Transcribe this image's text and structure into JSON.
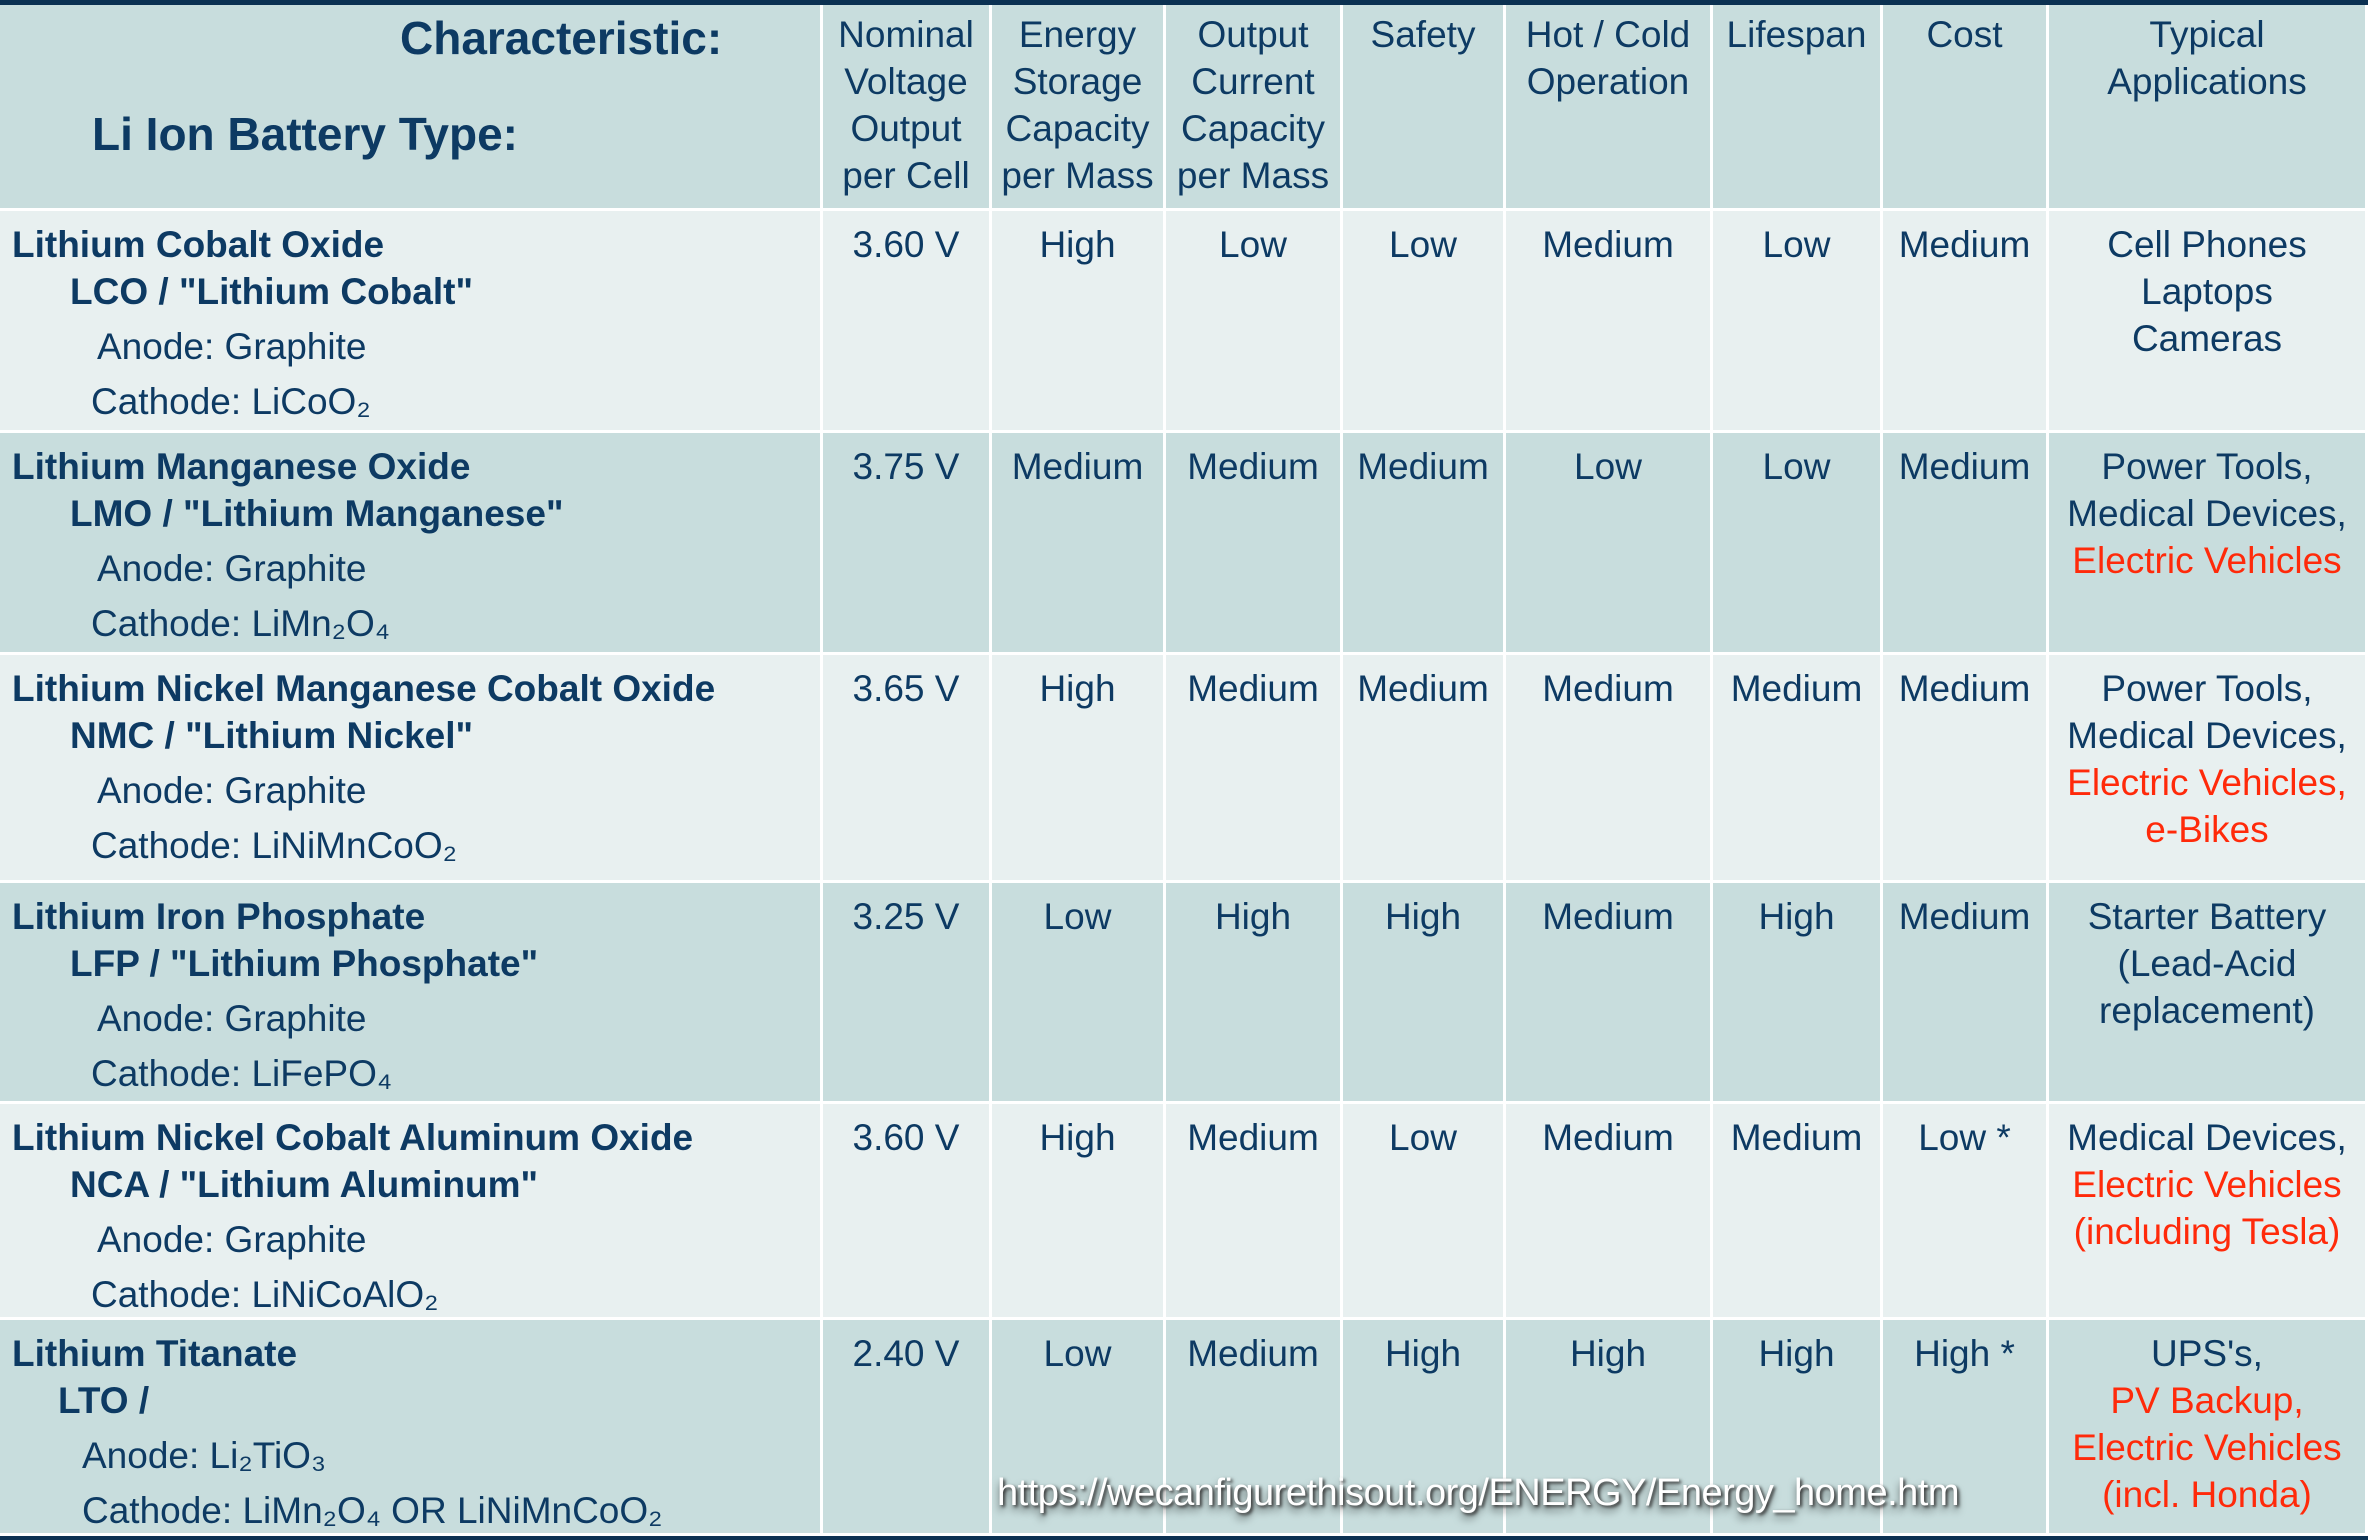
{
  "header": {
    "characteristic_label": "Characteristic:",
    "type_label": "Li Ion Battery Type:",
    "columns": [
      "Nominal Voltage Output per Cell",
      "Energy Storage Capacity per Mass",
      "Output Current Capacity per Mass",
      "Safety",
      "Hot / Cold Operation",
      "Lifespan",
      "Cost",
      "Typical Applications"
    ]
  },
  "rows": [
    {
      "name": "Lithium Cobalt Oxide",
      "abbr": "LCO / \"Lithium Cobalt\"",
      "anode": "Anode: Graphite",
      "cathode": "Cathode: LiCoO₂",
      "values": [
        "3.60 V",
        "High",
        "Low",
        "Low",
        "Medium",
        "Low",
        "Medium"
      ],
      "applications": [
        {
          "text": "Cell Phones",
          "red": false
        },
        {
          "text": "Laptops",
          "red": false
        },
        {
          "text": "Cameras",
          "red": false
        }
      ]
    },
    {
      "name": "Lithium Manganese Oxide",
      "abbr": "LMO / \"Lithium Manganese\"",
      "anode": "Anode: Graphite",
      "cathode": "Cathode: LiMn₂O₄",
      "values": [
        "3.75 V",
        "Medium",
        "Medium",
        "Medium",
        "Low",
        "Low",
        "Medium"
      ],
      "applications": [
        {
          "text": "Power Tools,",
          "red": false
        },
        {
          "text": "Medical Devices,",
          "red": false
        },
        {
          "text": "Electric Vehicles",
          "red": true
        }
      ]
    },
    {
      "name": "Lithium Nickel Manganese Cobalt Oxide",
      "abbr": "NMC / \"Lithium Nickel\"",
      "anode": "Anode: Graphite",
      "cathode": "Cathode: LiNiMnCoO₂",
      "values": [
        "3.65 V",
        "High",
        "Medium",
        "Medium",
        "Medium",
        "Medium",
        "Medium"
      ],
      "applications": [
        {
          "text": "Power Tools,",
          "red": false
        },
        {
          "text": "Medical Devices,",
          "red": false
        },
        {
          "text": "Electric Vehicles,",
          "red": true
        },
        {
          "text": "e-Bikes",
          "red": true
        }
      ]
    },
    {
      "name": "Lithium Iron Phosphate",
      "abbr": "LFP / \"Lithium Phosphate\"",
      "anode": "Anode: Graphite",
      "cathode": "Cathode: LiFePO₄",
      "values": [
        "3.25 V",
        "Low",
        "High",
        "High",
        "Medium",
        "High",
        "Medium"
      ],
      "applications": [
        {
          "text": "Starter Battery",
          "red": false
        },
        {
          "text": "(Lead-Acid",
          "red": false
        },
        {
          "text": "replacement)",
          "red": false
        }
      ]
    },
    {
      "name": "Lithium Nickel Cobalt Aluminum Oxide",
      "abbr": "NCA / \"Lithium Aluminum\"",
      "anode": "Anode: Graphite",
      "cathode": "Cathode: LiNiCoAlO₂",
      "values": [
        "3.60 V",
        "High",
        "Medium",
        "Low",
        "Medium",
        "Medium",
        "Low *"
      ],
      "applications": [
        {
          "text": "Medical Devices,",
          "red": false
        },
        {
          "text": "Electric Vehicles",
          "red": true
        },
        {
          "text": "(including Tesla)",
          "red": true
        }
      ]
    },
    {
      "name": "Lithium Titanate",
      "abbr": "LTO /",
      "anode": "Anode: Li₂TiO₃",
      "cathode": "Cathode: LiMn₂O₄  OR  LiNiMnCoO₂",
      "values": [
        "2.40 V",
        "Low",
        "Medium",
        "High",
        "High",
        "High",
        "High *"
      ],
      "applications": [
        {
          "text": "UPS's,",
          "red": false
        },
        {
          "text": "PV Backup,",
          "red": true
        },
        {
          "text": "Electric Vehicles",
          "red": true
        },
        {
          "text": "(incl. Honda)",
          "red": true
        }
      ]
    }
  ],
  "watermark": "https://wecanfigurethisout.org/ENERGY/Energy_home.htm",
  "colors": {
    "text": "#0d3a63",
    "highlight": "#ff2a0a",
    "header_bg": "#c8dddd",
    "row_light": "#e8f0f0",
    "row_dark": "#c8dddd",
    "frame": "#0b3152"
  }
}
